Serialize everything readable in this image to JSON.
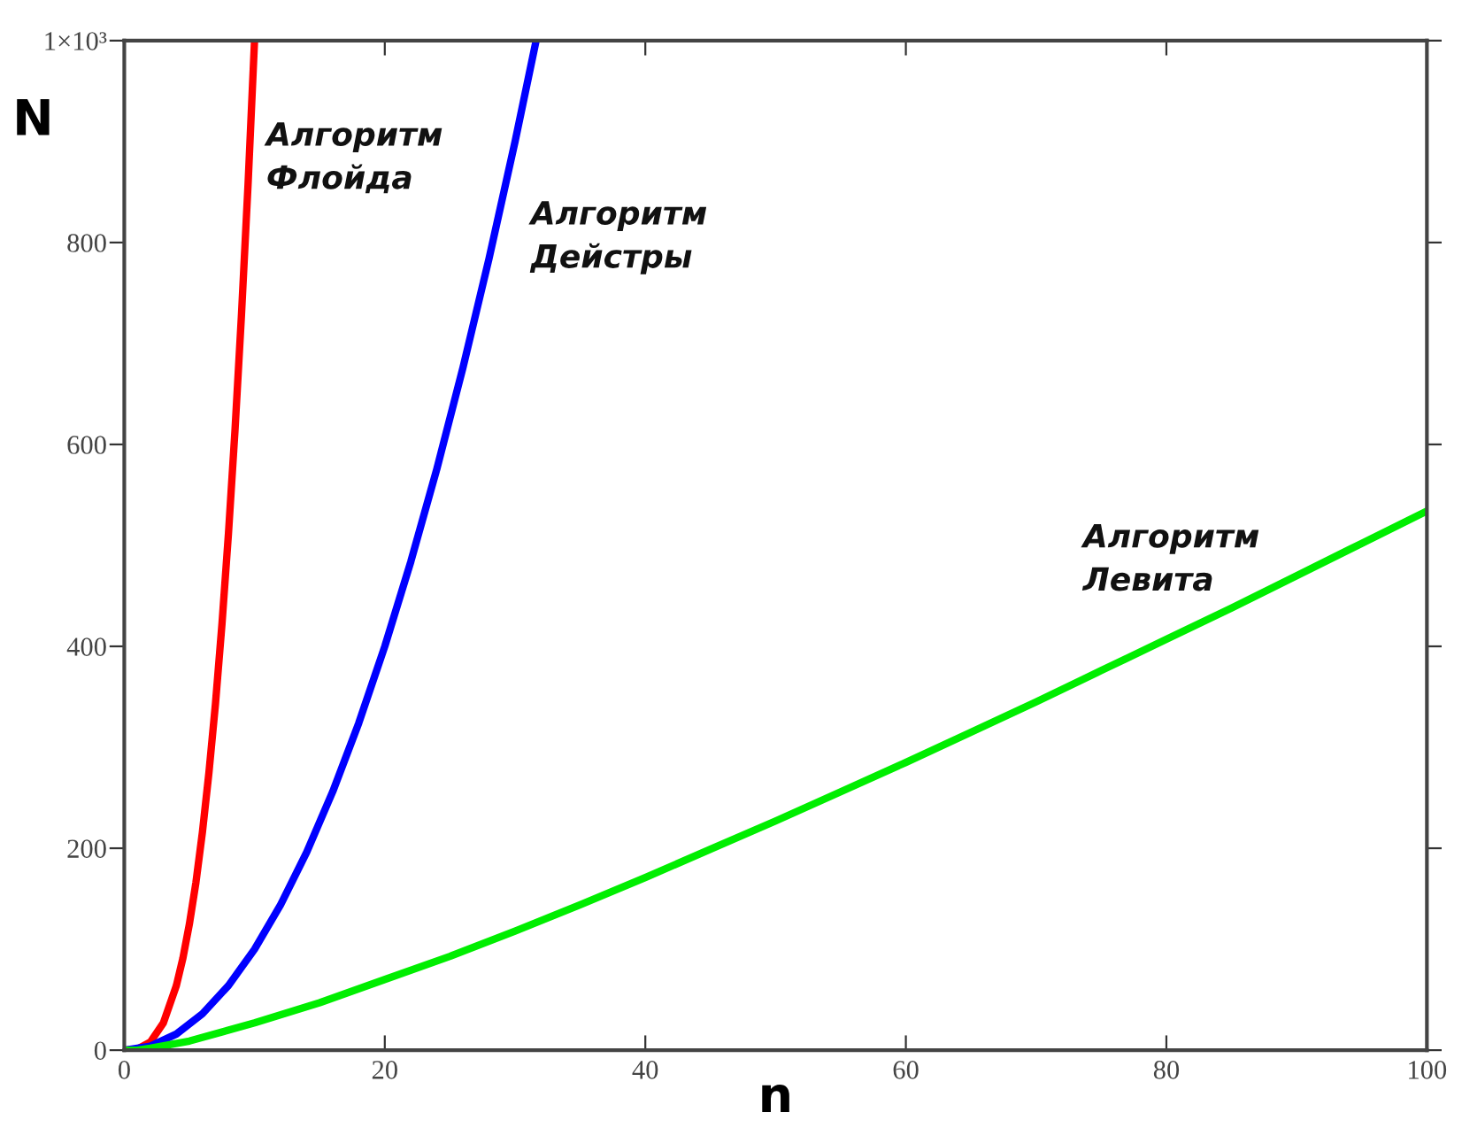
{
  "chart_data": {
    "type": "line",
    "xlabel": "n",
    "ylabel": "N",
    "xlim": [
      0,
      100
    ],
    "ylim": [
      0,
      1000
    ],
    "xticks": [
      0,
      20,
      40,
      60,
      80,
      100
    ],
    "yticks": [
      0,
      200,
      400,
      600,
      800,
      {
        "value": 1000,
        "label": "1×10³"
      }
    ],
    "grid": false,
    "marker": "none",
    "line_style": "solid",
    "series": [
      {
        "color": "#ff0000",
        "x": [
          0,
          1,
          2,
          3,
          4,
          4.5,
          5,
          5.5,
          6,
          6.5,
          7,
          7.5,
          8,
          8.5,
          9,
          9.5,
          10
        ],
        "values": [
          0,
          1,
          8,
          27,
          64,
          91,
          125,
          166,
          216,
          275,
          343,
          422,
          512,
          614,
          729,
          857,
          1000
        ]
      },
      {
        "color": "#0000ff",
        "x": [
          0,
          2,
          4,
          6,
          8,
          10,
          12,
          14,
          16,
          18,
          20,
          22,
          24,
          26,
          28,
          30,
          31.6
        ],
        "values": [
          0,
          4,
          16,
          36,
          64,
          100,
          144,
          196,
          256,
          324,
          400,
          484,
          576,
          676,
          784,
          900,
          999
        ]
      },
      {
        "color": "#00ee00",
        "x": [
          0,
          1,
          2,
          5,
          10,
          15,
          20,
          25,
          30,
          35,
          40,
          45,
          50,
          55,
          60,
          65,
          70,
          75,
          80,
          85,
          90,
          95,
          100
        ],
        "values": [
          0,
          0,
          2,
          9,
          27,
          47,
          70,
          93,
          118,
          144,
          171,
          199,
          227,
          256,
          285,
          315,
          345,
          376,
          407,
          438,
          470,
          502,
          534
        ]
      }
    ],
    "annotations": [
      "Алгоритм\nФлойда",
      "Алгоритм\nДейстры",
      "Алгоритм\nЛевита"
    ]
  }
}
